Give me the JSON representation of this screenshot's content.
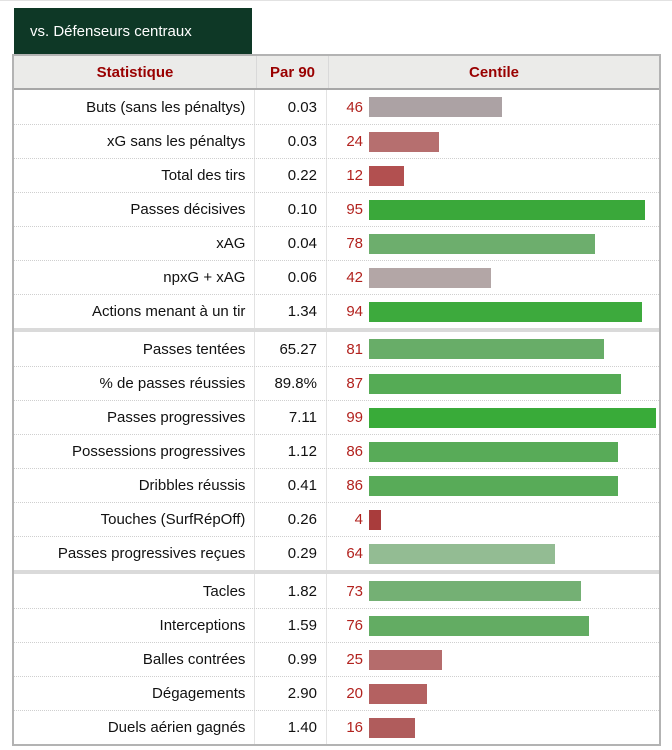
{
  "tab": {
    "label": "vs. Défenseurs centraux"
  },
  "colors": {
    "tab_bg": "#0e3826",
    "tab_text": "#ffffff",
    "header_bg": "#ebebe9",
    "header_text": "#990000",
    "percentile_text": "#b2221e",
    "table_border": "#b3b3b3",
    "row_divider": "#cfcfcf",
    "section_divider": "#dadada"
  },
  "chart_data": {
    "type": "bar",
    "orientation": "horizontal",
    "title": "vs. Défenseurs centraux",
    "columns": [
      "Statistique",
      "Par 90",
      "Centile"
    ],
    "xlim": [
      0,
      100
    ],
    "sections": [
      {
        "rows": [
          {
            "stat": "Buts (sans les pénaltys)",
            "per90": "0.03",
            "centile": 46,
            "color": "#aca2a4"
          },
          {
            "stat": "xG sans les pénaltys",
            "per90": "0.03",
            "centile": 24,
            "color": "#b66f6f"
          },
          {
            "stat": "Total des tirs",
            "per90": "0.22",
            "centile": 12,
            "color": "#b25050"
          },
          {
            "stat": "Passes décisives",
            "per90": "0.10",
            "centile": 95,
            "color": "#3aa83a"
          },
          {
            "stat": "xAG",
            "per90": "0.04",
            "centile": 78,
            "color": "#6dae6d"
          },
          {
            "stat": "npxG + xAG",
            "per90": "0.06",
            "centile": 42,
            "color": "#b3a6a6"
          },
          {
            "stat": "Actions menant à un tir",
            "per90": "1.34",
            "centile": 94,
            "color": "#3daa3d"
          }
        ]
      },
      {
        "rows": [
          {
            "stat": "Passes tentées",
            "per90": "65.27",
            "centile": 81,
            "color": "#68ad68"
          },
          {
            "stat": "% de passes réussies",
            "per90": "89.8%",
            "centile": 87,
            "color": "#55ab55"
          },
          {
            "stat": "Passes progressives",
            "per90": "7.11",
            "centile": 99,
            "color": "#39ab39"
          },
          {
            "stat": "Possessions progressives",
            "per90": "1.12",
            "centile": 86,
            "color": "#58ab58"
          },
          {
            "stat": "Dribbles réussis",
            "per90": "0.41",
            "centile": 86,
            "color": "#58ab58"
          },
          {
            "stat": "Touches (SurfRépOff)",
            "per90": "0.26",
            "centile": 4,
            "color": "#a93c3c"
          },
          {
            "stat": "Passes progressives reçues",
            "per90": "0.29",
            "centile": 64,
            "color": "#93bc93"
          }
        ]
      },
      {
        "rows": [
          {
            "stat": "Tacles",
            "per90": "1.82",
            "centile": 73,
            "color": "#74b074"
          },
          {
            "stat": "Interceptions",
            "per90": "1.59",
            "centile": 76,
            "color": "#63ac63"
          },
          {
            "stat": "Balles contrées",
            "per90": "0.99",
            "centile": 25,
            "color": "#b56c6c"
          },
          {
            "stat": "Dégagements",
            "per90": "2.90",
            "centile": 20,
            "color": "#b46161"
          },
          {
            "stat": "Duels aérien gagnés",
            "per90": "1.40",
            "centile": 16,
            "color": "#b05c5c"
          }
        ]
      }
    ]
  }
}
